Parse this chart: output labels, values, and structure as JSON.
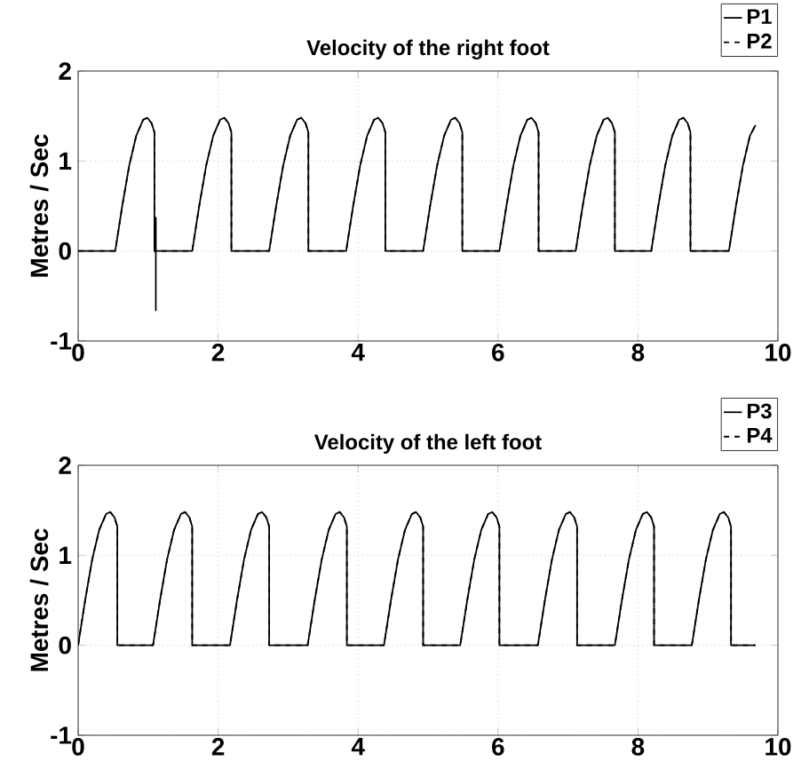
{
  "chart_data": [
    {
      "type": "line",
      "title": "Velocity of the right foot",
      "ylabel": "Metres / Sec",
      "xlim": [
        0,
        10
      ],
      "ylim": [
        -1,
        2
      ],
      "xticks": [
        0,
        2,
        4,
        6,
        8,
        10
      ],
      "yticks": [
        -1,
        0,
        1,
        2
      ],
      "grid": true,
      "legend": "top right",
      "series": [
        {
          "name": "P1",
          "color": "#000000",
          "line_style": "solid",
          "x": [
            0,
            0.53,
            0.63,
            0.73,
            0.83,
            0.93,
            0.99,
            1.05,
            1.09,
            1.09,
            1.11,
            1.11,
            1.11,
            1.63,
            1.73,
            1.83,
            1.93,
            2.03,
            2.09,
            2.15,
            2.19,
            2.19,
            2.73,
            2.83,
            2.93,
            3.03,
            3.13,
            3.19,
            3.25,
            3.29,
            3.29,
            3.83,
            3.93,
            4.03,
            4.13,
            4.23,
            4.29,
            4.35,
            4.39,
            4.39,
            4.93,
            5.03,
            5.13,
            5.23,
            5.33,
            5.39,
            5.45,
            5.49,
            5.49,
            6.02,
            6.12,
            6.22,
            6.32,
            6.42,
            6.48,
            6.54,
            6.58,
            6.58,
            7.11,
            7.21,
            7.31,
            7.41,
            7.51,
            7.57,
            7.63,
            7.67,
            7.67,
            8.19,
            8.29,
            8.39,
            8.49,
            8.59,
            8.65,
            8.71,
            8.75,
            8.75,
            9.3,
            9.4,
            9.5,
            9.6,
            9.68
          ],
          "values": [
            0,
            0,
            0.5,
            0.95,
            1.28,
            1.46,
            1.48,
            1.42,
            1.32,
            0,
            0.37,
            -0.66,
            0,
            0,
            0.5,
            0.95,
            1.28,
            1.46,
            1.48,
            1.42,
            1.32,
            0,
            0,
            0.5,
            0.95,
            1.28,
            1.46,
            1.48,
            1.42,
            1.32,
            0,
            0,
            0.5,
            0.95,
            1.28,
            1.46,
            1.48,
            1.42,
            1.32,
            0,
            0,
            0.5,
            0.95,
            1.28,
            1.46,
            1.48,
            1.42,
            1.32,
            0,
            0,
            0.5,
            0.95,
            1.28,
            1.46,
            1.48,
            1.42,
            1.32,
            0,
            0,
            0.5,
            0.95,
            1.28,
            1.46,
            1.48,
            1.42,
            1.32,
            0,
            0,
            0.5,
            0.95,
            1.28,
            1.46,
            1.48,
            1.42,
            1.32,
            0,
            0,
            0.5,
            0.95,
            1.28,
            1.4
          ]
        },
        {
          "name": "P2",
          "color": "#000000",
          "line_style": "dashed",
          "x": [
            0,
            0.53,
            0.63,
            0.73,
            0.83,
            0.93,
            0.99,
            1.05,
            1.09,
            1.09,
            1.63,
            1.73,
            1.83,
            1.93,
            2.03,
            2.09,
            2.15,
            2.19,
            2.19,
            2.73,
            2.83,
            2.93,
            3.03,
            3.13,
            3.19,
            3.25,
            3.29,
            3.29,
            3.83,
            3.93,
            4.03,
            4.13,
            4.23,
            4.29,
            4.35,
            4.39,
            4.39,
            4.93,
            5.03,
            5.13,
            5.23,
            5.33,
            5.39,
            5.45,
            5.49,
            5.49,
            6.02,
            6.12,
            6.22,
            6.32,
            6.42,
            6.48,
            6.54,
            6.58,
            6.58,
            7.11,
            7.21,
            7.31,
            7.41,
            7.51,
            7.57,
            7.63,
            7.67,
            7.67,
            8.19,
            8.29,
            8.39,
            8.49,
            8.59,
            8.65,
            8.71,
            8.75,
            8.75,
            9.3,
            9.4,
            9.5,
            9.6,
            9.68
          ],
          "values": [
            0,
            0,
            0.5,
            0.95,
            1.28,
            1.46,
            1.48,
            1.42,
            1.32,
            0,
            0,
            0.5,
            0.95,
            1.28,
            1.46,
            1.48,
            1.42,
            1.32,
            0,
            0,
            0.5,
            0.95,
            1.28,
            1.46,
            1.48,
            1.42,
            1.32,
            0,
            0,
            0.5,
            0.95,
            1.28,
            1.46,
            1.48,
            1.42,
            1.32,
            0,
            0,
            0.5,
            0.95,
            1.28,
            1.46,
            1.48,
            1.42,
            1.32,
            0,
            0,
            0.5,
            0.95,
            1.28,
            1.46,
            1.48,
            1.42,
            1.32,
            0,
            0,
            0.5,
            0.95,
            1.28,
            1.46,
            1.48,
            1.42,
            1.32,
            0,
            0,
            0.5,
            0.95,
            1.28,
            1.46,
            1.48,
            1.42,
            1.32,
            0,
            0,
            0.5,
            0.95,
            1.28,
            1.4
          ]
        }
      ]
    },
    {
      "type": "line",
      "title": "Velocity of the left foot",
      "ylabel": "Metres / Sec",
      "xlim": [
        0,
        10
      ],
      "ylim": [
        -1,
        2
      ],
      "xticks": [
        0,
        2,
        4,
        6,
        8,
        10
      ],
      "yticks": [
        -1,
        0,
        1,
        2
      ],
      "grid": true,
      "legend": "top right",
      "series": [
        {
          "name": "P3",
          "color": "#000000",
          "line_style": "solid",
          "x": [
            0,
            0.1,
            0.2,
            0.3,
            0.4,
            0.46,
            0.52,
            0.56,
            0.56,
            1.07,
            1.17,
            1.27,
            1.37,
            1.47,
            1.53,
            1.59,
            1.63,
            1.63,
            2.17,
            2.27,
            2.37,
            2.47,
            2.57,
            2.63,
            2.69,
            2.73,
            2.73,
            3.28,
            3.38,
            3.48,
            3.58,
            3.68,
            3.74,
            3.8,
            3.84,
            3.84,
            4.37,
            4.47,
            4.57,
            4.67,
            4.77,
            4.83,
            4.89,
            4.93,
            4.93,
            5.46,
            5.56,
            5.66,
            5.76,
            5.86,
            5.92,
            5.98,
            6.02,
            6.02,
            6.57,
            6.67,
            6.77,
            6.87,
            6.97,
            7.03,
            7.09,
            7.13,
            7.13,
            7.67,
            7.77,
            7.87,
            7.97,
            8.07,
            8.13,
            8.19,
            8.23,
            8.23,
            8.77,
            8.87,
            8.97,
            9.07,
            9.17,
            9.23,
            9.29,
            9.33,
            9.33,
            9.68
          ],
          "values": [
            0,
            0.5,
            0.95,
            1.28,
            1.46,
            1.48,
            1.42,
            1.32,
            0,
            0,
            0.5,
            0.95,
            1.28,
            1.46,
            1.48,
            1.42,
            1.32,
            0,
            0,
            0.5,
            0.95,
            1.28,
            1.46,
            1.48,
            1.42,
            1.32,
            0,
            0,
            0.5,
            0.95,
            1.28,
            1.46,
            1.48,
            1.42,
            1.32,
            0,
            0,
            0.5,
            0.95,
            1.28,
            1.46,
            1.48,
            1.42,
            1.32,
            0,
            0,
            0.5,
            0.95,
            1.28,
            1.46,
            1.48,
            1.42,
            1.32,
            0,
            0,
            0.5,
            0.95,
            1.28,
            1.46,
            1.48,
            1.42,
            1.32,
            0,
            0,
            0.5,
            0.95,
            1.28,
            1.46,
            1.48,
            1.42,
            1.32,
            0,
            0,
            0.5,
            0.95,
            1.28,
            1.46,
            1.48,
            1.42,
            1.32,
            0,
            0
          ]
        },
        {
          "name": "P4",
          "color": "#000000",
          "line_style": "dashed",
          "x": [
            0,
            0.1,
            0.2,
            0.3,
            0.4,
            0.46,
            0.52,
            0.56,
            0.56,
            1.07,
            1.17,
            1.27,
            1.37,
            1.47,
            1.53,
            1.59,
            1.63,
            1.63,
            2.17,
            2.27,
            2.37,
            2.47,
            2.57,
            2.63,
            2.69,
            2.73,
            2.73,
            3.28,
            3.38,
            3.48,
            3.58,
            3.68,
            3.74,
            3.8,
            3.84,
            3.84,
            4.37,
            4.47,
            4.57,
            4.67,
            4.77,
            4.83,
            4.89,
            4.93,
            4.93,
            5.46,
            5.56,
            5.66,
            5.76,
            5.86,
            5.92,
            5.98,
            6.02,
            6.02,
            6.57,
            6.67,
            6.77,
            6.87,
            6.97,
            7.03,
            7.09,
            7.13,
            7.13,
            7.67,
            7.77,
            7.87,
            7.97,
            8.07,
            8.13,
            8.19,
            8.23,
            8.23,
            8.77,
            8.87,
            8.97,
            9.07,
            9.17,
            9.23,
            9.29,
            9.33,
            9.33,
            9.68
          ],
          "values": [
            0,
            0.5,
            0.95,
            1.28,
            1.46,
            1.48,
            1.42,
            1.32,
            0,
            0,
            0.5,
            0.95,
            1.28,
            1.46,
            1.48,
            1.42,
            1.32,
            0,
            0,
            0.5,
            0.95,
            1.28,
            1.46,
            1.48,
            1.42,
            1.32,
            0,
            0,
            0.5,
            0.95,
            1.28,
            1.46,
            1.48,
            1.42,
            1.32,
            0,
            0,
            0.5,
            0.95,
            1.28,
            1.46,
            1.48,
            1.42,
            1.32,
            0,
            0,
            0.5,
            0.95,
            1.28,
            1.46,
            1.48,
            1.42,
            1.32,
            0,
            0,
            0.5,
            0.95,
            1.28,
            1.46,
            1.48,
            1.42,
            1.32,
            0,
            0,
            0.5,
            0.95,
            1.28,
            1.46,
            1.48,
            1.42,
            1.32,
            0,
            0,
            0.5,
            0.95,
            1.28,
            1.46,
            1.48,
            1.42,
            1.32,
            0,
            0
          ]
        }
      ]
    }
  ]
}
